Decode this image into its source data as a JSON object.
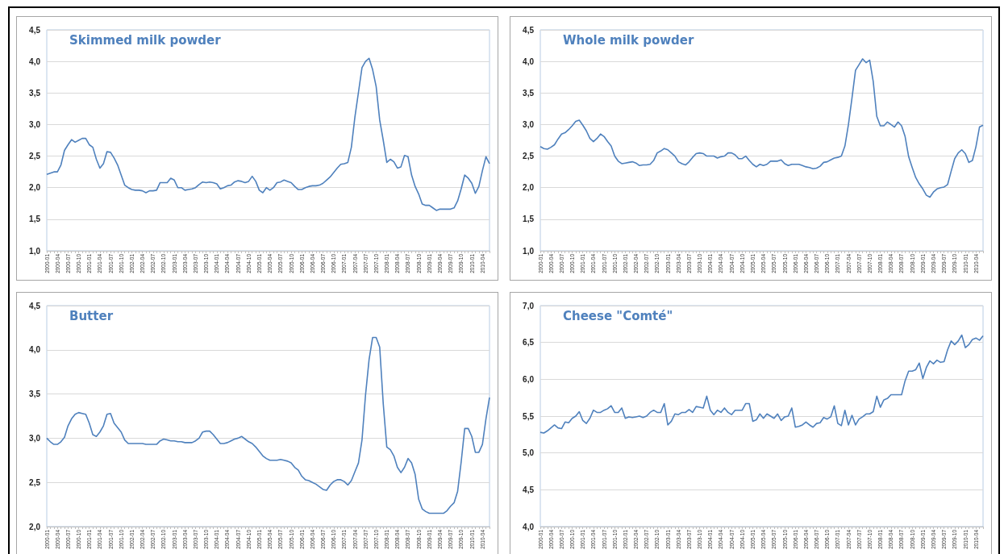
{
  "chart_data": [
    {
      "type": "line",
      "title": "Skimmed milk powder",
      "categories": [
        "2000-01",
        null,
        null,
        "2000-04",
        null,
        null,
        "2000-07",
        null,
        null,
        "2000-10",
        null,
        null,
        "2001-01",
        null,
        null,
        "2001-04",
        null,
        null,
        "2001-07",
        null,
        null,
        "2001-10",
        null,
        null,
        "2002-01",
        null,
        null,
        "2002-04",
        null,
        null,
        "2002-07",
        null,
        null,
        "2002-10",
        null,
        null,
        "2003-01",
        null,
        null,
        "2003-04",
        null,
        null,
        "2003-07",
        null,
        null,
        "2003-10",
        null,
        null,
        "2004-01",
        null,
        null,
        "2004-04",
        null,
        null,
        "2004-07",
        null,
        null,
        "2004-10",
        null,
        null,
        "2005-01",
        null,
        null,
        "2005-04",
        null,
        null,
        "2005-07",
        null,
        null,
        "2005-10",
        null,
        null,
        "2006-01",
        null,
        null,
        "2006-04",
        null,
        null,
        "2006-07",
        null,
        null,
        "2006-10",
        null,
        null,
        "2007-01",
        null,
        null,
        "2007-04",
        null,
        null,
        "2007-07",
        null,
        null,
        "2007-10",
        null,
        null,
        "2008-01",
        null,
        null,
        "2008-04",
        null,
        null,
        "2008-07",
        null,
        null,
        "2008-10",
        null,
        null,
        "2009-01",
        null,
        null,
        "2009-04",
        null,
        null,
        "2009-07",
        null,
        null,
        "2009-10",
        null,
        null,
        "2010-01",
        null,
        null,
        "2010-04",
        null,
        null
      ],
      "series": [
        {
          "color": "#4f81bd",
          "values": [
            2.21,
            2.23,
            2.25,
            2.25,
            2.36,
            2.59,
            2.68,
            2.76,
            2.72,
            2.75,
            2.78,
            2.78,
            2.68,
            2.64,
            2.45,
            2.31,
            2.38,
            2.57,
            2.56,
            2.47,
            2.36,
            2.2,
            2.04,
            2.0,
            1.97,
            1.96,
            1.96,
            1.95,
            1.92,
            1.95,
            1.95,
            1.96,
            2.08,
            2.08,
            2.08,
            2.15,
            2.12,
            2.0,
            2.0,
            1.96,
            1.97,
            1.98,
            2.0,
            2.05,
            2.09,
            2.08,
            2.09,
            2.08,
            2.06,
            1.98,
            2.0,
            2.03,
            2.04,
            2.09,
            2.11,
            2.1,
            2.08,
            2.1,
            2.18,
            2.1,
            1.96,
            1.92,
            2.0,
            1.96,
            2.0,
            2.08,
            2.09,
            2.12,
            2.1,
            2.08,
            2.02,
            1.97,
            1.97,
            2.0,
            2.02,
            2.03,
            2.03,
            2.04,
            2.07,
            2.12,
            2.17,
            2.24,
            2.31,
            2.37,
            2.38,
            2.4,
            2.64,
            3.12,
            3.51,
            3.9,
            4.0,
            4.05,
            3.87,
            3.6,
            3.07,
            2.75,
            2.4,
            2.45,
            2.41,
            2.31,
            2.33,
            2.51,
            2.49,
            2.2,
            2.02,
            1.9,
            1.74,
            1.72,
            1.72,
            1.68,
            1.64,
            1.66,
            1.66,
            1.66,
            1.66,
            1.68,
            1.79,
            1.98,
            2.2,
            2.15,
            2.07,
            1.91,
            2.02,
            2.27,
            2.49,
            2.38
          ]
        }
      ],
      "ylim": [
        1.0,
        4.5
      ],
      "yticks": [
        {
          "value": 1.0,
          "label": "1,0"
        },
        {
          "value": 1.5,
          "label": "1,5"
        },
        {
          "value": 2.0,
          "label": "2,0"
        },
        {
          "value": 2.5,
          "label": "2,5"
        },
        {
          "value": 3.0,
          "label": "3,0"
        },
        {
          "value": 3.5,
          "label": "3,5"
        },
        {
          "value": 4.0,
          "label": "4,0"
        },
        {
          "value": 4.5,
          "label": "4,5"
        }
      ],
      "grid": "y",
      "marker": "none"
    },
    {
      "type": "line",
      "title": "Whole milk powder",
      "categories": [
        "2000-01",
        null,
        null,
        "2000-04",
        null,
        null,
        "2000-07",
        null,
        null,
        "2000-10",
        null,
        null,
        "2001-01",
        null,
        null,
        "2001-04",
        null,
        null,
        "2001-07",
        null,
        null,
        "2001-10",
        null,
        null,
        "2002-01",
        null,
        null,
        "2002-04",
        null,
        null,
        "2002-07",
        null,
        null,
        "2002-10",
        null,
        null,
        "2003-01",
        null,
        null,
        "2003-04",
        null,
        null,
        "2003-07",
        null,
        null,
        "2003-10",
        null,
        null,
        "2004-01",
        null,
        null,
        "2004-04",
        null,
        null,
        "2004-07",
        null,
        null,
        "2004-10",
        null,
        null,
        "2005-01",
        null,
        null,
        "2005-04",
        null,
        null,
        "2005-07",
        null,
        null,
        "2005-10",
        null,
        null,
        "2006-01",
        null,
        null,
        "2006-04",
        null,
        null,
        "2006-07",
        null,
        null,
        "2006-10",
        null,
        null,
        "2007-01",
        null,
        null,
        "2007-04",
        null,
        null,
        "2007-07",
        null,
        null,
        "2007-10",
        null,
        null,
        "2008-01",
        null,
        null,
        "2008-04",
        null,
        null,
        "2008-07",
        null,
        null,
        "2008-10",
        null,
        null,
        "2009-01",
        null,
        null,
        "2009-04",
        null,
        null,
        "2009-07",
        null,
        null,
        "2009-10",
        null,
        null,
        "2010-01",
        null,
        null,
        "2010-04",
        null,
        null
      ],
      "series": [
        {
          "color": "#4f81bd",
          "values": [
            2.65,
            2.62,
            2.61,
            2.64,
            2.68,
            2.77,
            2.85,
            2.87,
            2.92,
            2.98,
            3.05,
            3.07,
            2.99,
            2.9,
            2.78,
            2.73,
            2.78,
            2.85,
            2.81,
            2.73,
            2.66,
            2.5,
            2.42,
            2.38,
            2.39,
            2.4,
            2.41,
            2.39,
            2.35,
            2.36,
            2.36,
            2.37,
            2.43,
            2.55,
            2.58,
            2.62,
            2.6,
            2.55,
            2.5,
            2.41,
            2.38,
            2.36,
            2.41,
            2.48,
            2.54,
            2.55,
            2.54,
            2.5,
            2.5,
            2.5,
            2.47,
            2.49,
            2.5,
            2.55,
            2.55,
            2.52,
            2.46,
            2.46,
            2.5,
            2.43,
            2.37,
            2.33,
            2.37,
            2.35,
            2.37,
            2.42,
            2.42,
            2.42,
            2.44,
            2.38,
            2.35,
            2.37,
            2.37,
            2.37,
            2.35,
            2.33,
            2.32,
            2.3,
            2.31,
            2.34,
            2.4,
            2.41,
            2.44,
            2.47,
            2.48,
            2.5,
            2.66,
            3.0,
            3.42,
            3.86,
            3.95,
            4.04,
            3.98,
            4.02,
            3.68,
            3.13,
            2.98,
            2.98,
            3.04,
            3.0,
            2.96,
            3.04,
            2.98,
            2.81,
            2.49,
            2.32,
            2.16,
            2.06,
            1.98,
            1.88,
            1.85,
            1.93,
            1.98,
            2.0,
            2.01,
            2.05,
            2.26,
            2.46,
            2.55,
            2.6,
            2.54,
            2.4,
            2.43,
            2.65,
            2.96,
            2.99
          ]
        }
      ],
      "ylim": [
        1.0,
        4.5
      ],
      "yticks": [
        {
          "value": 1.0,
          "label": "1,0"
        },
        {
          "value": 1.5,
          "label": "1,5"
        },
        {
          "value": 2.0,
          "label": "2,0"
        },
        {
          "value": 2.5,
          "label": "2,5"
        },
        {
          "value": 3.0,
          "label": "3,0"
        },
        {
          "value": 3.5,
          "label": "3,5"
        },
        {
          "value": 4.0,
          "label": "4,0"
        },
        {
          "value": 4.5,
          "label": "4,5"
        }
      ],
      "grid": "y",
      "marker": "none"
    },
    {
      "type": "line",
      "title": "Butter",
      "categories": [
        "2000-01",
        null,
        null,
        "2000-04",
        null,
        null,
        "2000-07",
        null,
        null,
        "2000-10",
        null,
        null,
        "2001-01",
        null,
        null,
        "2001-04",
        null,
        null,
        "2001-07",
        null,
        null,
        "2001-10",
        null,
        null,
        "2002-01",
        null,
        null,
        "2002-04",
        null,
        null,
        "2002-07",
        null,
        null,
        "2002-10",
        null,
        null,
        "2003-01",
        null,
        null,
        "2003-04",
        null,
        null,
        "2003-07",
        null,
        null,
        "2003-10",
        null,
        null,
        "2004-01",
        null,
        null,
        "2004-04",
        null,
        null,
        "2004-07",
        null,
        null,
        "2004-10",
        null,
        null,
        "2005-01",
        null,
        null,
        "2005-04",
        null,
        null,
        "2005-07",
        null,
        null,
        "2005-10",
        null,
        null,
        "2006-01",
        null,
        null,
        "2006-04",
        null,
        null,
        "2006-07",
        null,
        null,
        "2006-10",
        null,
        null,
        "2007-01",
        null,
        null,
        "2007-04",
        null,
        null,
        "2007-07",
        null,
        null,
        "2007-10",
        null,
        null,
        "2008-01",
        null,
        null,
        "2008-04",
        null,
        null,
        "2008-07",
        null,
        null,
        "2008-10",
        null,
        null,
        "2009-01",
        null,
        null,
        "2009-04",
        null,
        null,
        "2009-07",
        null,
        null,
        "2009-10",
        null,
        null,
        "2010-01",
        null,
        null,
        "2010-04",
        null,
        null
      ],
      "series": [
        {
          "color": "#4f81bd",
          "values": [
            3.0,
            2.96,
            2.93,
            2.93,
            2.96,
            3.01,
            3.14,
            3.22,
            3.27,
            3.29,
            3.28,
            3.27,
            3.17,
            3.04,
            3.02,
            3.07,
            3.14,
            3.27,
            3.28,
            3.17,
            3.12,
            3.07,
            2.98,
            2.94,
            2.94,
            2.94,
            2.94,
            2.94,
            2.93,
            2.93,
            2.93,
            2.93,
            2.97,
            2.99,
            2.98,
            2.97,
            2.97,
            2.96,
            2.96,
            2.95,
            2.95,
            2.95,
            2.97,
            3.0,
            3.07,
            3.08,
            3.08,
            3.04,
            2.99,
            2.94,
            2.94,
            2.95,
            2.97,
            2.99,
            3.0,
            3.02,
            2.99,
            2.96,
            2.94,
            2.9,
            2.85,
            2.8,
            2.77,
            2.75,
            2.75,
            2.75,
            2.76,
            2.75,
            2.74,
            2.72,
            2.67,
            2.64,
            2.57,
            2.53,
            2.52,
            2.5,
            2.48,
            2.45,
            2.42,
            2.41,
            2.47,
            2.51,
            2.53,
            2.53,
            2.51,
            2.47,
            2.52,
            2.62,
            2.72,
            2.98,
            3.49,
            3.89,
            4.14,
            4.14,
            4.03,
            3.39,
            2.9,
            2.87,
            2.8,
            2.67,
            2.61,
            2.67,
            2.77,
            2.72,
            2.59,
            2.31,
            2.2,
            2.17,
            2.15,
            2.15,
            2.15,
            2.15,
            2.15,
            2.18,
            2.23,
            2.27,
            2.4,
            2.73,
            3.11,
            3.11,
            3.02,
            2.84,
            2.84,
            2.93,
            3.22,
            3.46
          ]
        }
      ],
      "ylim": [
        2.0,
        4.5
      ],
      "yticks": [
        {
          "value": 2.0,
          "label": "2,0"
        },
        {
          "value": 2.5,
          "label": "2,5"
        },
        {
          "value": 3.0,
          "label": "3,0"
        },
        {
          "value": 3.5,
          "label": "3,5"
        },
        {
          "value": 4.0,
          "label": "4,0"
        },
        {
          "value": 4.5,
          "label": "4,5"
        }
      ],
      "grid": "y",
      "marker": "none"
    },
    {
      "type": "line",
      "title": "Cheese \"Comté\"",
      "categories": [
        "2000-01",
        null,
        null,
        "2000-04",
        null,
        null,
        "2000-07",
        null,
        null,
        "2000-10",
        null,
        null,
        "2001-01",
        null,
        null,
        "2001-04",
        null,
        null,
        "2001-07",
        null,
        null,
        "2001-10",
        null,
        null,
        "2002-01",
        null,
        null,
        "2002-04",
        null,
        null,
        "2002-07",
        null,
        null,
        "2002-10",
        null,
        null,
        "2003-01",
        null,
        null,
        "2003-04",
        null,
        null,
        "2003-07",
        null,
        null,
        "2003-10",
        null,
        null,
        "2004-01",
        null,
        null,
        "2004-04",
        null,
        null,
        "2004-07",
        null,
        null,
        "2004-10",
        null,
        null,
        "2005-01",
        null,
        null,
        "2005-04",
        null,
        null,
        "2005-07",
        null,
        null,
        "2005-10",
        null,
        null,
        "2006-01",
        null,
        null,
        "2006-04",
        null,
        null,
        "2006-07",
        null,
        null,
        "2006-10",
        null,
        null,
        "2007-01",
        null,
        null,
        "2007-04",
        null,
        null,
        "2007-07",
        null,
        null,
        "2007-10",
        null,
        null,
        "2008-01",
        null,
        null,
        "2008-04",
        null,
        null,
        "2008-07",
        null,
        null,
        "2008-10",
        null,
        null,
        "2009-01",
        null,
        null,
        "2009-04",
        null,
        null,
        "2009-07",
        null,
        null,
        "2009-10",
        null,
        null,
        "2010-01",
        null,
        null,
        "2010-04",
        null,
        null
      ],
      "series": [
        {
          "color": "#4f81bd",
          "values": [
            5.28,
            5.27,
            5.3,
            5.34,
            5.38,
            5.34,
            5.33,
            5.42,
            5.41,
            5.47,
            5.5,
            5.56,
            5.44,
            5.4,
            5.47,
            5.58,
            5.55,
            5.55,
            5.58,
            5.6,
            5.64,
            5.55,
            5.55,
            5.61,
            5.47,
            5.49,
            5.48,
            5.49,
            5.5,
            5.48,
            5.5,
            5.55,
            5.58,
            5.55,
            5.55,
            5.67,
            5.38,
            5.43,
            5.53,
            5.52,
            5.55,
            5.55,
            5.59,
            5.55,
            5.63,
            5.62,
            5.61,
            5.77,
            5.58,
            5.52,
            5.58,
            5.55,
            5.61,
            5.55,
            5.52,
            5.58,
            5.58,
            5.58,
            5.67,
            5.67,
            5.43,
            5.45,
            5.53,
            5.47,
            5.53,
            5.5,
            5.47,
            5.53,
            5.44,
            5.49,
            5.5,
            5.61,
            5.35,
            5.36,
            5.38,
            5.42,
            5.38,
            5.35,
            5.4,
            5.41,
            5.48,
            5.46,
            5.49,
            5.64,
            5.4,
            5.37,
            5.58,
            5.38,
            5.51,
            5.38,
            5.46,
            5.49,
            5.53,
            5.53,
            5.56,
            5.77,
            5.62,
            5.72,
            5.74,
            5.79,
            5.79,
            5.79,
            5.79,
            5.98,
            6.11,
            6.11,
            6.13,
            6.22,
            6.01,
            6.16,
            6.25,
            6.21,
            6.26,
            6.23,
            6.24,
            6.4,
            6.52,
            6.47,
            6.52,
            6.6,
            6.43,
            6.47,
            6.54,
            6.56,
            6.53,
            6.59
          ]
        }
      ],
      "ylim": [
        4.0,
        7.0
      ],
      "yticks": [
        {
          "value": 4.0,
          "label": "4,0"
        },
        {
          "value": 4.5,
          "label": "4,5"
        },
        {
          "value": 5.0,
          "label": "5,0"
        },
        {
          "value": 5.5,
          "label": "5,5"
        },
        {
          "value": 6.0,
          "label": "6,0"
        },
        {
          "value": 6.5,
          "label": "6,5"
        },
        {
          "value": 7.0,
          "label": "7,0"
        }
      ],
      "grid": "y",
      "marker": "none"
    }
  ]
}
